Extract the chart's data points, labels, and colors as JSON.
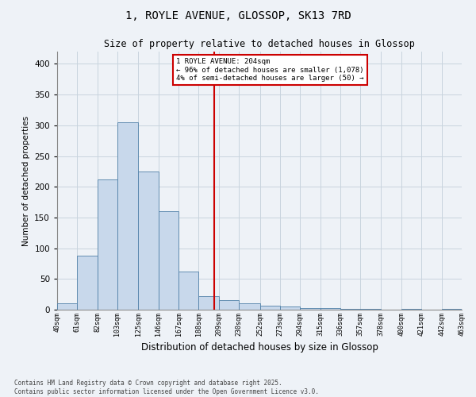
{
  "title": "1, ROYLE AVENUE, GLOSSOP, SK13 7RD",
  "subtitle": "Size of property relative to detached houses in Glossop",
  "xlabel": "Distribution of detached houses by size in Glossop",
  "ylabel": "Number of detached properties",
  "footer_line1": "Contains HM Land Registry data © Crown copyright and database right 2025.",
  "footer_line2": "Contains public sector information licensed under the Open Government Licence v3.0.",
  "property_size": 204,
  "property_label": "1 ROYLE AVENUE: 204sqm",
  "annotation_line2": "← 96% of detached houses are smaller (1,078)",
  "annotation_line3": "4% of semi-detached houses are larger (50) →",
  "bar_color": "#c8d8eb",
  "bar_edge_color": "#5080a8",
  "vline_color": "#cc0000",
  "annotation_box_edge": "#cc0000",
  "background_color": "#eef2f7",
  "bins": [
    40,
    61,
    82,
    103,
    125,
    146,
    167,
    188,
    209,
    230,
    252,
    273,
    294,
    315,
    336,
    357,
    378,
    400,
    421,
    442,
    463
  ],
  "bin_labels": [
    "40sqm",
    "61sqm",
    "82sqm",
    "103sqm",
    "125sqm",
    "146sqm",
    "167sqm",
    "188sqm",
    "209sqm",
    "230sqm",
    "252sqm",
    "273sqm",
    "294sqm",
    "315sqm",
    "336sqm",
    "357sqm",
    "378sqm",
    "400sqm",
    "421sqm",
    "442sqm",
    "463sqm"
  ],
  "counts": [
    10,
    88,
    212,
    305,
    225,
    160,
    62,
    22,
    15,
    10,
    7,
    5,
    3,
    2,
    1,
    1,
    0,
    1,
    0,
    1
  ],
  "ylim": [
    0,
    420
  ],
  "yticks": [
    0,
    50,
    100,
    150,
    200,
    250,
    300,
    350,
    400
  ],
  "grid_color": "#c8d4de",
  "title_fontsize": 10,
  "subtitle_fontsize": 8.5,
  "ylabel_fontsize": 7.5,
  "xlabel_fontsize": 8.5,
  "ytick_fontsize": 7.5,
  "xtick_fontsize": 6,
  "annot_fontsize": 6.5,
  "footer_fontsize": 5.5
}
